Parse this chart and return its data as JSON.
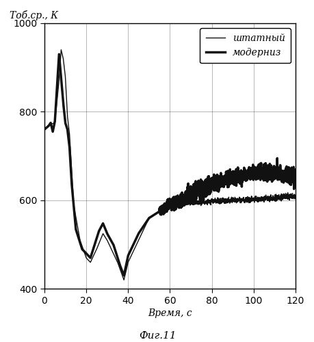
{
  "title_ylabel": "Тоб.ср., К",
  "xlabel": "Время, с",
  "caption": "Фиг.11",
  "xlim": [
    0,
    120
  ],
  "ylim": [
    400,
    1000
  ],
  "yticks": [
    400,
    600,
    800,
    1000
  ],
  "xticks": [
    0,
    20,
    40,
    60,
    80,
    100,
    120
  ],
  "legend_thin": "штатный",
  "legend_thick": "модерниз",
  "line_color": "#111111",
  "thin_lw": 1.0,
  "thick_lw": 2.5
}
